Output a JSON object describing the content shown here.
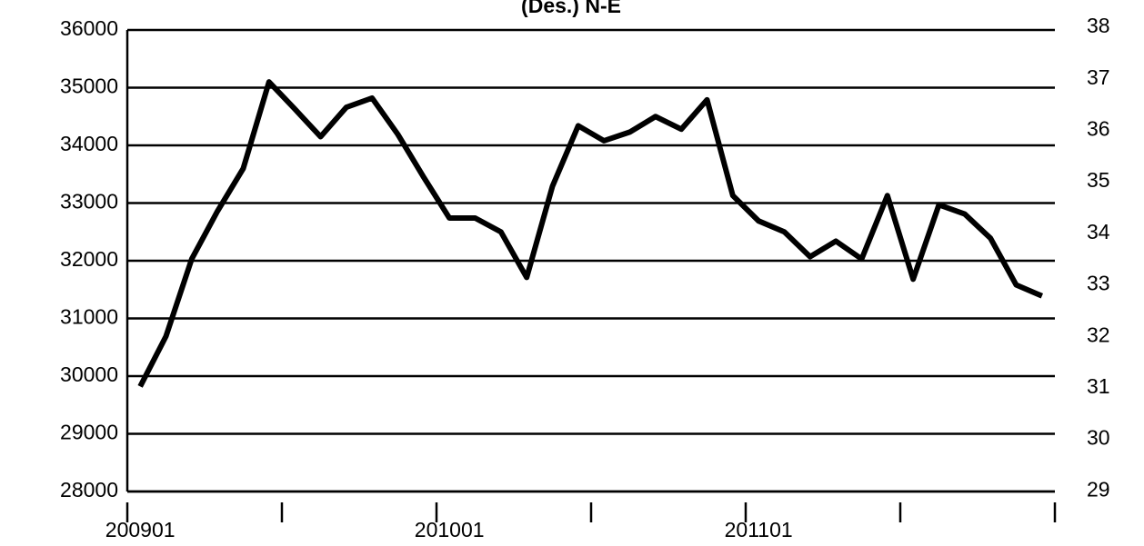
{
  "chart_data": {
    "type": "line",
    "title": "(Des.) N-E",
    "categories": [
      "200901",
      null,
      null,
      null,
      null,
      null,
      null,
      null,
      null,
      null,
      null,
      null,
      "201001",
      null,
      null,
      null,
      null,
      null,
      null,
      null,
      null,
      null,
      null,
      null,
      "201101",
      null,
      null,
      null,
      null,
      null,
      null,
      null,
      null,
      null,
      null,
      null
    ],
    "series": [
      {
        "color": "#000000",
        "values": [
          29820,
          30690,
          32030,
          32860,
          33600,
          35100,
          34630,
          34150,
          34660,
          34820,
          34190,
          33450,
          32740,
          32740,
          32500,
          31710,
          33290,
          34340,
          34080,
          34230,
          34500,
          34280,
          34790,
          33130,
          32690,
          32500,
          32070,
          32340,
          32030,
          33130,
          31680,
          32970,
          32810,
          32390,
          31580,
          31390
        ]
      }
    ],
    "ylim": [
      28000,
      36000
    ],
    "yticks": [
      28000,
      29000,
      30000,
      31000,
      32000,
      33000,
      34000,
      35000,
      36000
    ],
    "grid": true,
    "right_axis_labels": [
      "38",
      "37",
      "36",
      "35",
      "34",
      "33",
      "32",
      "31",
      "30",
      "29"
    ]
  }
}
